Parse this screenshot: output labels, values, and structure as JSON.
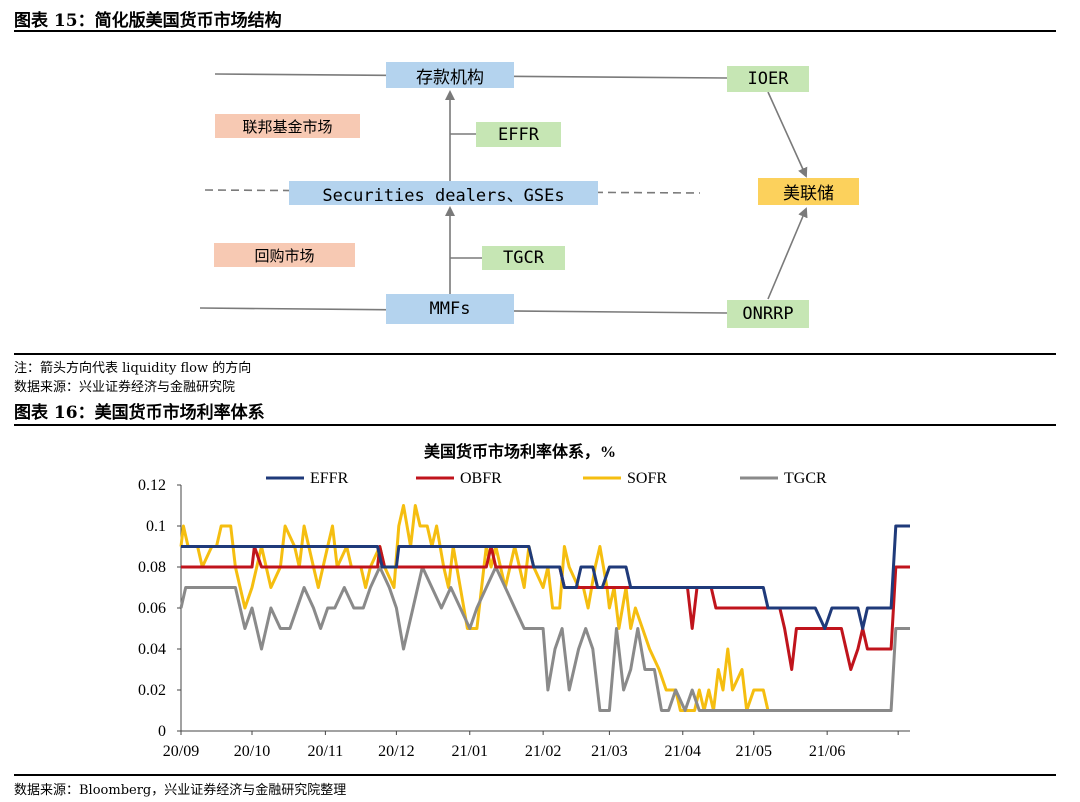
{
  "figure15": {
    "title": "图表 15：简化版美国货币市场结构",
    "boxes": {
      "deposit": "存款机构",
      "ioer": "IOER",
      "fed_funds_market": "联邦基金市场",
      "effr": "EFFR",
      "dealers": "Securities dealers、GSEs",
      "fed": "美联储",
      "repo_market": "回购市场",
      "tgcr": "TGCR",
      "mmfs": "MMFs",
      "onrrp": "ONRRP"
    },
    "note": "注：箭头方向代表 liquidity flow 的方向",
    "source": "数据来源：兴业证券经济与金融研究院"
  },
  "figure16": {
    "title": "图表 16：美国货币市场利率体系",
    "source": "数据来源：Bloomberg，兴业证券经济与金融研究院整理"
  },
  "colors": {
    "EFFR": "#1f3a7a",
    "OBFR": "#c0141c",
    "SOFR": "#f5be10",
    "TGCR": "#8a8a8a"
  },
  "chart_data": {
    "type": "line",
    "title": "美国货币市场利率体系，%",
    "xlabel": "",
    "ylabel": "",
    "ylim": [
      0,
      0.12
    ],
    "yticks": [
      "0",
      "0.02",
      "0.04",
      "0.06",
      "0.08",
      "0.1",
      "0.12"
    ],
    "xticks": [
      "20/09",
      "20/10",
      "20/11",
      "20/12",
      "21/01",
      "21/02",
      "21/03",
      "21/04",
      "21/05",
      "21/06"
    ],
    "legend": "top",
    "grid": false,
    "series": [
      {
        "name": "EFFR",
        "points": [
          [
            "2020-09-01",
            0.09
          ],
          [
            "2020-11-23",
            0.09
          ],
          [
            "2020-11-25",
            0.08
          ],
          [
            "2020-12-01",
            0.08
          ],
          [
            "2020-12-02",
            0.09
          ],
          [
            "2021-01-26",
            0.09
          ],
          [
            "2021-01-28",
            0.08
          ],
          [
            "2021-02-08",
            0.08
          ],
          [
            "2021-02-10",
            0.07
          ],
          [
            "2021-02-15",
            0.07
          ],
          [
            "2021-02-17",
            0.08
          ],
          [
            "2021-02-22",
            0.08
          ],
          [
            "2021-02-24",
            0.07
          ],
          [
            "2021-02-26",
            0.07
          ],
          [
            "2021-03-01",
            0.08
          ],
          [
            "2021-03-08",
            0.08
          ],
          [
            "2021-03-10",
            0.07
          ],
          [
            "2021-05-05",
            0.07
          ],
          [
            "2021-05-07",
            0.06
          ],
          [
            "2021-05-12",
            0.06
          ],
          [
            "2021-05-14",
            0.06
          ],
          [
            "2021-05-27",
            0.06
          ],
          [
            "2021-05-31",
            0.05
          ],
          [
            "2021-06-03",
            0.06
          ],
          [
            "2021-06-14",
            0.06
          ],
          [
            "2021-06-16",
            0.05
          ],
          [
            "2021-06-18",
            0.06
          ],
          [
            "2021-06-28",
            0.06
          ],
          [
            "2021-06-30",
            0.1
          ],
          [
            "2021-07-06",
            0.1
          ]
        ]
      },
      {
        "name": "OBFR",
        "points": [
          [
            "2020-09-01",
            0.08
          ],
          [
            "2020-10-01",
            0.08
          ],
          [
            "2020-10-02",
            0.09
          ],
          [
            "2020-10-05",
            0.08
          ],
          [
            "2020-11-23",
            0.08
          ],
          [
            "2020-11-24",
            0.09
          ],
          [
            "2020-11-26",
            0.08
          ],
          [
            "2021-01-08",
            0.08
          ],
          [
            "2021-01-10",
            0.09
          ],
          [
            "2021-01-12",
            0.08
          ],
          [
            "2021-02-08",
            0.08
          ],
          [
            "2021-02-10",
            0.07
          ],
          [
            "2021-04-03",
            0.07
          ],
          [
            "2021-04-05",
            0.05
          ],
          [
            "2021-04-07",
            0.07
          ],
          [
            "2021-04-13",
            0.07
          ],
          [
            "2021-04-15",
            0.06
          ],
          [
            "2021-05-12",
            0.06
          ],
          [
            "2021-05-14",
            0.05
          ],
          [
            "2021-05-17",
            0.03
          ],
          [
            "2021-05-19",
            0.05
          ],
          [
            "2021-05-21",
            0.05
          ],
          [
            "2021-05-24",
            0.05
          ],
          [
            "2021-06-07",
            0.05
          ],
          [
            "2021-06-09",
            0.04
          ],
          [
            "2021-06-11",
            0.03
          ],
          [
            "2021-06-14",
            0.04
          ],
          [
            "2021-06-16",
            0.05
          ],
          [
            "2021-06-18",
            0.04
          ],
          [
            "2021-06-28",
            0.04
          ],
          [
            "2021-06-30",
            0.08
          ],
          [
            "2021-07-06",
            0.08
          ]
        ]
      },
      {
        "name": "SOFR",
        "points": [
          [
            "2020-09-01",
            0.09
          ],
          [
            "2020-09-02",
            0.1
          ],
          [
            "2020-09-04",
            0.09
          ],
          [
            "2020-09-08",
            0.09
          ],
          [
            "2020-09-10",
            0.08
          ],
          [
            "2020-09-14",
            0.09
          ],
          [
            "2020-09-16",
            0.09
          ],
          [
            "2020-09-18",
            0.1
          ],
          [
            "2020-09-22",
            0.1
          ],
          [
            "2020-09-24",
            0.08
          ],
          [
            "2020-09-28",
            0.06
          ],
          [
            "2020-10-01",
            0.07
          ],
          [
            "2020-10-05",
            0.09
          ],
          [
            "2020-10-07",
            0.08
          ],
          [
            "2020-10-09",
            0.07
          ],
          [
            "2020-10-13",
            0.08
          ],
          [
            "2020-10-15",
            0.1
          ],
          [
            "2020-10-19",
            0.09
          ],
          [
            "2020-10-21",
            0.08
          ],
          [
            "2020-10-23",
            0.1
          ],
          [
            "2020-10-27",
            0.08
          ],
          [
            "2020-10-29",
            0.07
          ],
          [
            "2020-11-02",
            0.09
          ],
          [
            "2020-11-04",
            0.1
          ],
          [
            "2020-11-06",
            0.08
          ],
          [
            "2020-11-10",
            0.09
          ],
          [
            "2020-11-12",
            0.08
          ],
          [
            "2020-11-16",
            0.08
          ],
          [
            "2020-11-18",
            0.07
          ],
          [
            "2020-11-20",
            0.08
          ],
          [
            "2020-11-24",
            0.09
          ],
          [
            "2020-11-26",
            0.08
          ],
          [
            "2020-11-30",
            0.07
          ],
          [
            "2020-12-02",
            0.1
          ],
          [
            "2020-12-04",
            0.11
          ],
          [
            "2020-12-07",
            0.09
          ],
          [
            "2020-12-09",
            0.11
          ],
          [
            "2020-12-11",
            0.1
          ],
          [
            "2020-12-14",
            0.1
          ],
          [
            "2020-12-16",
            0.09
          ],
          [
            "2020-12-18",
            0.1
          ],
          [
            "2020-12-21",
            0.08
          ],
          [
            "2020-12-23",
            0.07
          ],
          [
            "2020-12-25",
            0.09
          ],
          [
            "2020-12-28",
            0.07
          ],
          [
            "2020-12-31",
            0.05
          ],
          [
            "2021-01-04",
            0.05
          ],
          [
            "2021-01-06",
            0.07
          ],
          [
            "2021-01-08",
            0.09
          ],
          [
            "2021-01-10",
            0.08
          ],
          [
            "2021-01-12",
            0.09
          ],
          [
            "2021-01-14",
            0.08
          ],
          [
            "2021-01-16",
            0.07
          ],
          [
            "2021-01-18",
            0.08
          ],
          [
            "2021-01-20",
            0.09
          ],
          [
            "2021-01-22",
            0.08
          ],
          [
            "2021-01-24",
            0.07
          ],
          [
            "2021-01-26",
            0.09
          ],
          [
            "2021-01-28",
            0.08
          ],
          [
            "2021-02-01",
            0.07
          ],
          [
            "2021-02-03",
            0.08
          ],
          [
            "2021-02-05",
            0.06
          ],
          [
            "2021-02-08",
            0.06
          ],
          [
            "2021-02-10",
            0.09
          ],
          [
            "2021-02-12",
            0.08
          ],
          [
            "2021-02-16",
            0.07
          ],
          [
            "2021-02-18",
            0.07
          ],
          [
            "2021-02-20",
            0.06
          ],
          [
            "2021-02-23",
            0.08
          ],
          [
            "2021-02-25",
            0.09
          ],
          [
            "2021-02-28",
            0.07
          ],
          [
            "2021-03-01",
            0.06
          ],
          [
            "2021-03-03",
            0.07
          ],
          [
            "2021-03-05",
            0.05
          ],
          [
            "2021-03-08",
            0.07
          ],
          [
            "2021-03-10",
            0.05
          ],
          [
            "2021-03-12",
            0.06
          ],
          [
            "2021-03-15",
            0.05
          ],
          [
            "2021-03-18",
            0.04
          ],
          [
            "2021-03-22",
            0.03
          ],
          [
            "2021-03-25",
            0.02
          ],
          [
            "2021-03-29",
            0.02
          ],
          [
            "2021-03-31",
            0.01
          ],
          [
            "2021-04-06",
            0.01
          ],
          [
            "2021-04-08",
            0.02
          ],
          [
            "2021-04-10",
            0.01
          ],
          [
            "2021-04-12",
            0.02
          ],
          [
            "2021-04-14",
            0.01
          ],
          [
            "2021-04-16",
            0.03
          ],
          [
            "2021-04-18",
            0.02
          ],
          [
            "2021-04-20",
            0.04
          ],
          [
            "2021-04-22",
            0.02
          ],
          [
            "2021-04-26",
            0.03
          ],
          [
            "2021-04-28",
            0.01
          ],
          [
            "2021-05-01",
            0.02
          ],
          [
            "2021-05-05",
            0.02
          ],
          [
            "2021-05-07",
            0.01
          ]
        ]
      },
      {
        "name": "TGCR",
        "points": [
          [
            "2020-09-01",
            0.06
          ],
          [
            "2020-09-03",
            0.07
          ],
          [
            "2020-09-24",
            0.07
          ],
          [
            "2020-09-28",
            0.05
          ],
          [
            "2020-10-01",
            0.06
          ],
          [
            "2020-10-05",
            0.04
          ],
          [
            "2020-10-09",
            0.06
          ],
          [
            "2020-10-13",
            0.05
          ],
          [
            "2020-10-17",
            0.05
          ],
          [
            "2020-10-20",
            0.06
          ],
          [
            "2020-10-23",
            0.07
          ],
          [
            "2020-10-27",
            0.06
          ],
          [
            "2020-10-30",
            0.05
          ],
          [
            "2020-11-02",
            0.06
          ],
          [
            "2020-11-05",
            0.06
          ],
          [
            "2020-11-09",
            0.07
          ],
          [
            "2020-11-13",
            0.06
          ],
          [
            "2020-11-17",
            0.06
          ],
          [
            "2020-11-20",
            0.07
          ],
          [
            "2020-11-24",
            0.08
          ],
          [
            "2020-11-28",
            0.07
          ],
          [
            "2020-12-01",
            0.06
          ],
          [
            "2020-12-04",
            0.04
          ],
          [
            "2020-12-08",
            0.06
          ],
          [
            "2020-12-12",
            0.08
          ],
          [
            "2020-12-16",
            0.07
          ],
          [
            "2020-12-20",
            0.06
          ],
          [
            "2020-12-24",
            0.07
          ],
          [
            "2020-12-28",
            0.06
          ],
          [
            "2021-01-01",
            0.05
          ],
          [
            "2021-01-04",
            0.06
          ],
          [
            "2021-01-08",
            0.07
          ],
          [
            "2021-01-12",
            0.08
          ],
          [
            "2021-01-16",
            0.07
          ],
          [
            "2021-01-20",
            0.06
          ],
          [
            "2021-01-24",
            0.05
          ],
          [
            "2021-01-28",
            0.05
          ],
          [
            "2021-02-01",
            0.05
          ],
          [
            "2021-02-03",
            0.02
          ],
          [
            "2021-02-06",
            0.04
          ],
          [
            "2021-02-09",
            0.05
          ],
          [
            "2021-02-12",
            0.02
          ],
          [
            "2021-02-16",
            0.04
          ],
          [
            "2021-02-19",
            0.05
          ],
          [
            "2021-02-22",
            0.04
          ],
          [
            "2021-02-25",
            0.01
          ],
          [
            "2021-03-01",
            0.01
          ],
          [
            "2021-03-04",
            0.05
          ],
          [
            "2021-03-07",
            0.02
          ],
          [
            "2021-03-10",
            0.03
          ],
          [
            "2021-03-13",
            0.05
          ],
          [
            "2021-03-16",
            0.03
          ],
          [
            "2021-03-20",
            0.03
          ],
          [
            "2021-03-23",
            0.01
          ],
          [
            "2021-03-26",
            0.01
          ],
          [
            "2021-03-29",
            0.02
          ],
          [
            "2021-04-02",
            0.01
          ],
          [
            "2021-04-05",
            0.02
          ],
          [
            "2021-04-08",
            0.01
          ],
          [
            "2021-04-12",
            0.01
          ],
          [
            "2021-04-15",
            0.01
          ],
          [
            "2021-04-20",
            0.01
          ],
          [
            "2021-05-05",
            0.01
          ],
          [
            "2021-06-01",
            0.01
          ],
          [
            "2021-06-28",
            0.01
          ],
          [
            "2021-06-30",
            0.05
          ],
          [
            "2021-07-06",
            0.05
          ]
        ]
      }
    ]
  }
}
